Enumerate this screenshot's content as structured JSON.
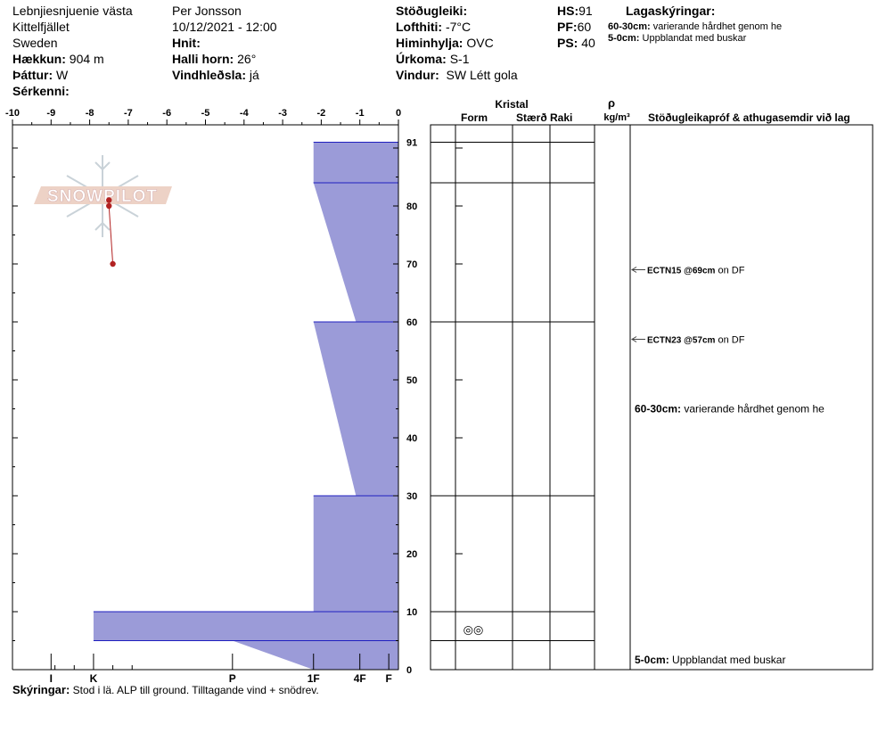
{
  "header": {
    "location_name": "Lebnjiesnjuenie västa",
    "region": "Kittelfjället",
    "country": "Sweden",
    "elevation_label": "Hækkun:",
    "elevation": "904 m",
    "aspect_label": "Þáttur:",
    "aspect": "W",
    "features_label": "Sérkenni:",
    "observer": "Per Jonsson",
    "datetime": "10/12/2021 - 12:00",
    "coords_label": "Hnit:",
    "slope_label": "Halli horn:",
    "slope": "26°",
    "wind_loading_label": "Vindhleðsla:",
    "wind_loading": "já",
    "stability_label": "Stöðugleiki:",
    "air_temp_label": "Lofthiti:",
    "air_temp": "-7°C",
    "sky_label": "Himinhylja:",
    "sky": "OVC",
    "precip_label": "Úrkoma:",
    "precip": "S-1",
    "wind_label": "Vindur:",
    "wind": "SW Létt gola",
    "hs_label": "HS:",
    "hs": "91",
    "pf_label": "PF:",
    "pf": "60",
    "ps_label": "PS:",
    "ps": "40",
    "layer_notes_title": "Lagaskýringar:",
    "layer_notes": [
      {
        "range": "60-30cm:",
        "text": "varierande hårdhet genom he"
      },
      {
        "range": "5-0cm:",
        "text": "Uppblandat med buskar"
      }
    ]
  },
  "logo_text": "SNOWPILOT",
  "table": {
    "crystal_header": "Kristal",
    "form_header": "Form",
    "size_header": "Stærð",
    "moisture_header": "Raki",
    "density_symbol": "ρ",
    "density_unit": "kg/m³",
    "tests_header": "Stöðugleikapróf & athugasemdir við lag",
    "tests": [
      {
        "code": "ECTN15 @69cm",
        "text": "on DF",
        "depth": 69
      },
      {
        "code": "ECTN23 @57cm",
        "text": "on DF",
        "depth": 57
      }
    ],
    "layer_comments": [
      {
        "range": "60-30cm:",
        "text": "varierande hårdhet genom he",
        "top": 45
      },
      {
        "range": "5-0cm:",
        "text": "Uppblandat med buskar",
        "top": 0
      }
    ],
    "grain_symbol": {
      "glyph": "◎◎",
      "depth": 7
    }
  },
  "comments_label": "Skýringar:",
  "comments": "Stod i lä. ALP till ground. Tilltagande vind + snödrev.",
  "colors": {
    "hardness_fill": "#9b9bd8",
    "hardness_stroke": "#1f1fbf",
    "temp_line": "#b22222",
    "logo": "#e0b8a8"
  },
  "chart_data": {
    "type": "snow-profile",
    "temp_axis": {
      "min": -10,
      "max": 0,
      "ticks": [
        -10,
        -9,
        -8,
        -7,
        -6,
        -5,
        -4,
        -3,
        -2,
        -1,
        0
      ]
    },
    "height_axis": {
      "min": 0,
      "max": 94,
      "ticks": [
        0,
        10,
        20,
        30,
        40,
        50,
        60,
        70,
        80,
        91
      ]
    },
    "hardness_axis": {
      "labels": [
        "I",
        "K",
        "P",
        "1F",
        "4F",
        "F"
      ],
      "values": [
        -9.0,
        -7.9,
        -4.3,
        -2.2,
        -1.0,
        -0.25
      ]
    },
    "temperature_profile": [
      {
        "height": 81,
        "temp": -7.5
      },
      {
        "height": 80,
        "temp": -7.5
      },
      {
        "height": 70,
        "temp": -7.4
      }
    ],
    "hardness_layers": [
      {
        "top": 91,
        "bottom": 84,
        "hardness_top": -2.2,
        "hardness_bottom": -2.2
      },
      {
        "top": 84,
        "bottom": 60,
        "hardness_top": -2.2,
        "hardness_bottom": -1.1
      },
      {
        "top": 60,
        "bottom": 30,
        "hardness_top": -2.2,
        "hardness_bottom": -1.1
      },
      {
        "top": 30,
        "bottom": 10,
        "hardness_top": -2.2,
        "hardness_bottom": -2.2
      },
      {
        "top": 10,
        "bottom": 5,
        "hardness_top": -7.9,
        "hardness_bottom": -7.9
      },
      {
        "top": 5,
        "bottom": 0,
        "hardness_top": -4.3,
        "hardness_bottom": -2.2
      }
    ],
    "layer_boundaries": [
      91,
      84,
      60,
      30,
      10,
      5
    ]
  }
}
